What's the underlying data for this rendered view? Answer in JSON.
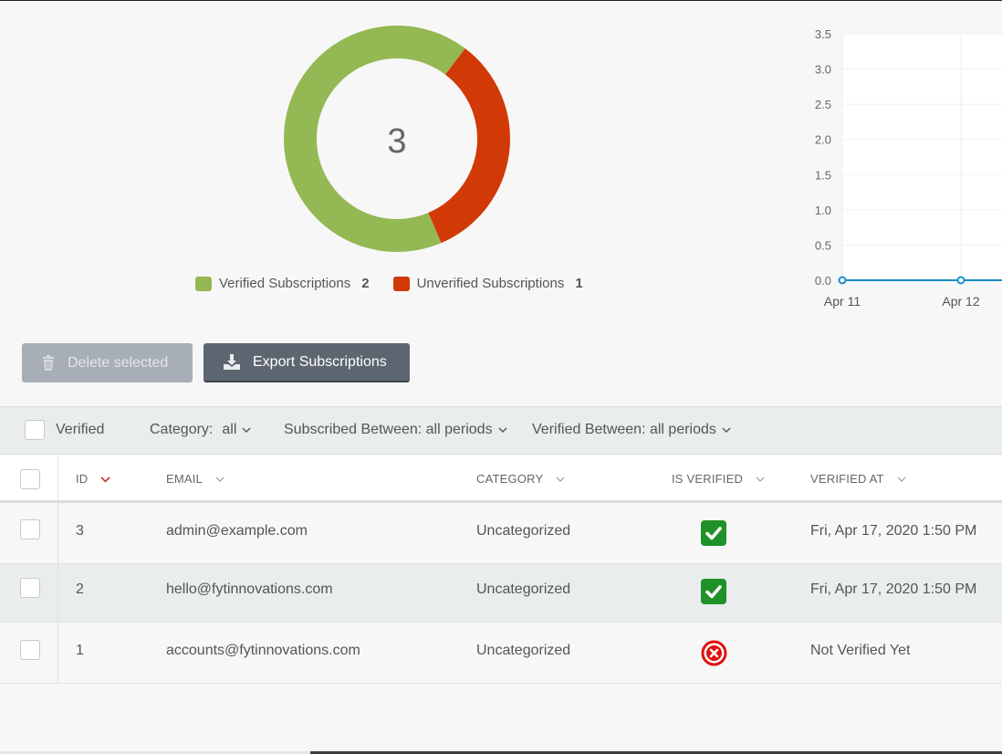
{
  "donut": {
    "center_value": "3",
    "legend": [
      {
        "label": "Verified Subscriptions",
        "count": "2",
        "color": "#94b853"
      },
      {
        "label": "Unverified Subscriptions",
        "count": "1",
        "color": "#d13a06"
      }
    ]
  },
  "chart_data": {
    "type": "line",
    "x": [
      "Apr 11",
      "Apr 12"
    ],
    "series": [
      {
        "values": [
          0,
          0
        ],
        "color": "#1a8fc7"
      }
    ],
    "ylim": [
      0,
      3.5
    ],
    "yticks": [
      "3.5",
      "3.0",
      "2.5",
      "2.0",
      "1.5",
      "1.0",
      "0.5",
      "0.0"
    ],
    "grid": true
  },
  "toolbar": {
    "delete_label": "Delete selected",
    "export_label": "Export Subscriptions"
  },
  "filters": {
    "verified_label": "Verified",
    "category_label": "Category:",
    "category_value": "all",
    "subscribed_label": "Subscribed Between: all periods",
    "verified_between_label": "Verified Between: all periods"
  },
  "table": {
    "columns": {
      "id": "ID",
      "email": "EMAIL",
      "category": "CATEGORY",
      "is_verified": "IS VERIFIED",
      "verified_at": "VERIFIED AT"
    },
    "rows": [
      {
        "id": "3",
        "email": "admin@example.com",
        "category": "Uncategorized",
        "verified": true,
        "verified_at": "Fri, Apr 17, 2020 1:50 PM"
      },
      {
        "id": "2",
        "email": "hello@fytinnovations.com",
        "category": "Uncategorized",
        "verified": true,
        "verified_at": "Fri, Apr 17, 2020 1:50 PM"
      },
      {
        "id": "1",
        "email": "accounts@fytinnovations.com",
        "category": "Uncategorized",
        "verified": false,
        "verified_at": "Not Verified Yet"
      }
    ]
  }
}
